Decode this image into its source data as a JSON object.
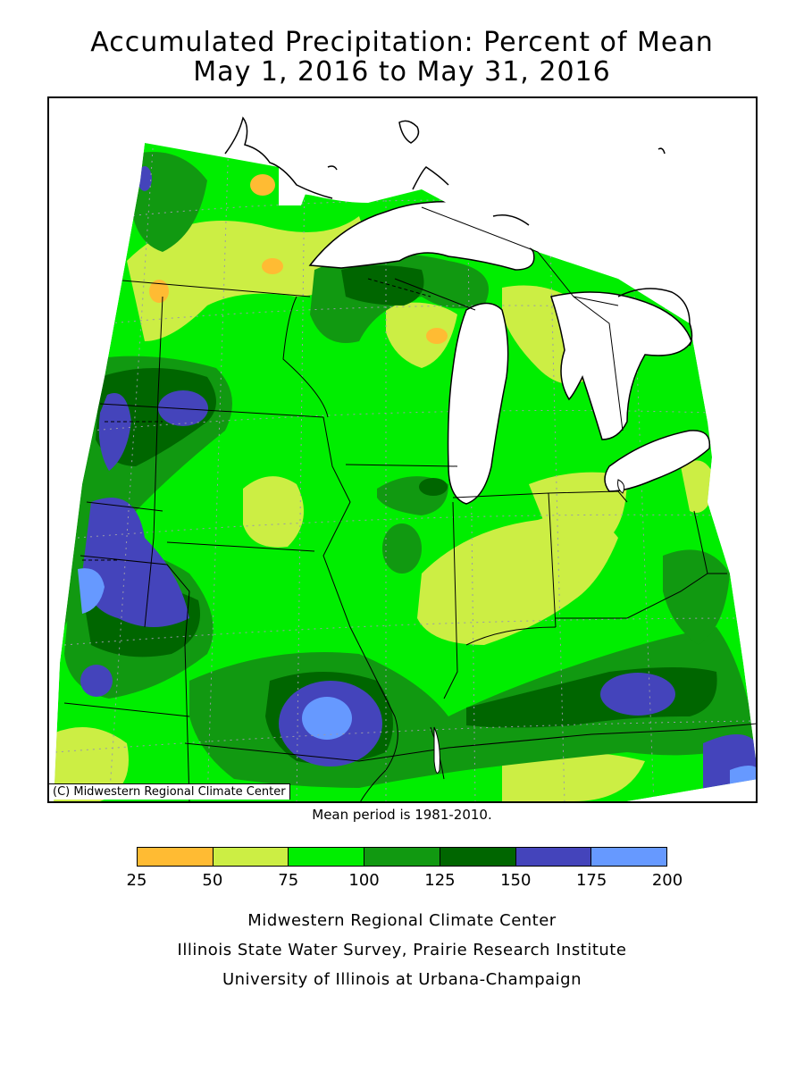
{
  "title": {
    "line1": "Accumulated Precipitation: Percent of Mean",
    "line2": "May 1, 2016 to May 31, 2016"
  },
  "map": {
    "copyright": "(C) Midwestern Regional Climate Center",
    "mean_period": "Mean period is 1981-2010."
  },
  "legend": {
    "bins": [
      {
        "from": 25,
        "to": 50,
        "color": "#ffbb33"
      },
      {
        "from": 50,
        "to": 75,
        "color": "#ccee44"
      },
      {
        "from": 75,
        "to": 100,
        "color": "#00ee00"
      },
      {
        "from": 100,
        "to": 125,
        "color": "#119911"
      },
      {
        "from": 125,
        "to": 150,
        "color": "#006600"
      },
      {
        "from": 150,
        "to": 175,
        "color": "#4444bb"
      },
      {
        "from": 175,
        "to": 200,
        "color": "#6699ff"
      }
    ],
    "ticks": [
      "25",
      "50",
      "75",
      "100",
      "125",
      "150",
      "175",
      "200"
    ]
  },
  "credits": {
    "line1": "Midwestern Regional Climate Center",
    "line2": "Illinois State Water Survey, Prairie Research Institute",
    "line3": "University of Illinois at Urbana-Champaign"
  }
}
